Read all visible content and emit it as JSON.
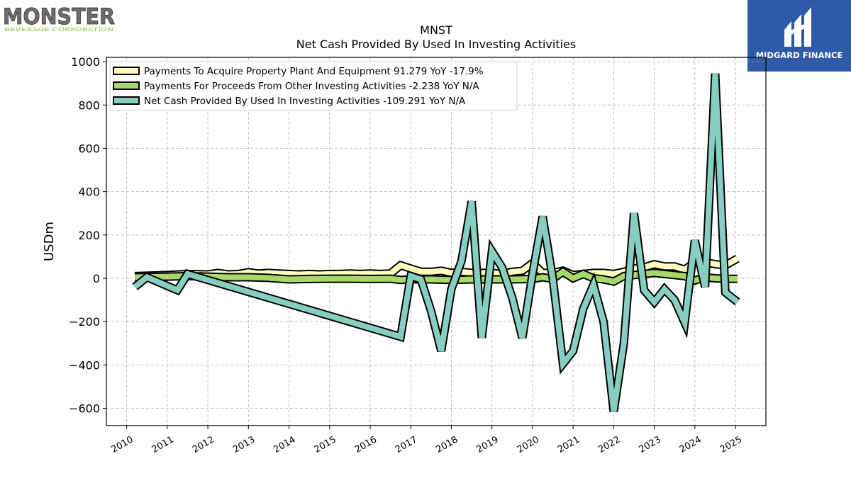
{
  "brand_left": {
    "name": "MONSTER",
    "sub": "BEVERAGE CORPORATION"
  },
  "brand_right": {
    "name": "MIDGARD FINANCE"
  },
  "colors": {
    "series1": "#ffffbf",
    "series2": "#a6d96a",
    "series3": "#86cfc0",
    "outline": "#000000",
    "brand_right_bg": "#2e5aa8"
  },
  "chart_data": {
    "type": "line",
    "title": "MNST",
    "subtitle": "Net Cash Provided By Used In Investing Activities",
    "ylabel": "USDm",
    "xlabel": "",
    "ylim": [
      -680,
      1020
    ],
    "xlim": [
      2009.5,
      2025.75
    ],
    "yticks": [
      -600,
      -400,
      -200,
      0,
      200,
      400,
      600,
      800,
      1000
    ],
    "ytick_labels": [
      "−600",
      "−400",
      "−200",
      "0",
      "200",
      "400",
      "600",
      "800",
      "1000"
    ],
    "xticks": [
      2010,
      2011,
      2012,
      2013,
      2014,
      2015,
      2016,
      2017,
      2018,
      2019,
      2020,
      2021,
      2022,
      2023,
      2024,
      2025
    ],
    "xtick_labels": [
      "2010",
      "2011",
      "2012",
      "2013",
      "2014",
      "2015",
      "2016",
      "2017",
      "2018",
      "2019",
      "2020",
      "2021",
      "2022",
      "2023",
      "2024",
      "2025"
    ],
    "grid": true,
    "legend_position": "top-left",
    "series": [
      {
        "name": "Payments To Acquire Property Plant And Equipment  91.279 YoY -17.9%",
        "x": [
          2010.2,
          2011.0,
          2011.5,
          2012.0,
          2012.25,
          2012.5,
          2012.75,
          2013.0,
          2013.25,
          2013.5,
          2013.75,
          2014.0,
          2014.25,
          2014.5,
          2014.75,
          2015.0,
          2015.25,
          2015.5,
          2015.75,
          2016.0,
          2016.25,
          2016.5,
          2016.75,
          2017.0,
          2017.25,
          2017.5,
          2017.75,
          2018.0,
          2018.25,
          2018.5,
          2018.75,
          2019.0,
          2019.25,
          2019.5,
          2019.75,
          2020.0,
          2020.25,
          2020.5,
          2020.75,
          2021.0,
          2021.25,
          2021.5,
          2021.75,
          2022.0,
          2022.25,
          2022.5,
          2022.75,
          2023.0,
          2023.25,
          2023.5,
          2023.75,
          2024.0,
          2024.25,
          2024.5,
          2024.75,
          2025.05
        ],
        "values": [
          10,
          15,
          20,
          18,
          25,
          18,
          20,
          28,
          22,
          25,
          22,
          20,
          18,
          20,
          18,
          20,
          20,
          22,
          20,
          22,
          20,
          22,
          60,
          45,
          30,
          30,
          35,
          25,
          30,
          25,
          25,
          25,
          20,
          30,
          35,
          70,
          25,
          25,
          35,
          15,
          20,
          25,
          25,
          20,
          30,
          45,
          50,
          65,
          55,
          55,
          40,
          75,
          75,
          65,
          60,
          91.279
        ]
      },
      {
        "name": "Payments For Proceeds From Other Investing Activities  -2.238 YoY N/A",
        "x": [
          2010.2,
          2011.0,
          2011.5,
          2012.0,
          2012.5,
          2013.0,
          2013.5,
          2014.0,
          2014.5,
          2015.0,
          2015.5,
          2016.0,
          2016.5,
          2016.75,
          2017.0,
          2017.5,
          2018.0,
          2018.5,
          2019.0,
          2019.5,
          2020.0,
          2020.25,
          2020.5,
          2020.75,
          2021.0,
          2021.25,
          2021.5,
          2021.75,
          2022.0,
          2022.25,
          2022.5,
          2022.75,
          2023.0,
          2023.25,
          2023.5,
          2023.75,
          2024.0,
          2024.25,
          2024.5,
          2024.75,
          2025.05
        ],
        "values": [
          5,
          8,
          10,
          8,
          5,
          5,
          2,
          -5,
          -3,
          -2,
          -2,
          -3,
          -2,
          -8,
          -5,
          -5,
          -8,
          -5,
          -5,
          -5,
          -3,
          5,
          -3,
          30,
          0,
          20,
          0,
          -5,
          -15,
          10,
          15,
          20,
          25,
          20,
          15,
          10,
          -10,
          5,
          0,
          -2,
          -2.238
        ]
      },
      {
        "name": "Net Cash Provided By Used In Investing Activities  -109.291 YoY N/A",
        "x": [
          2010.2,
          2010.5,
          2011.25,
          2011.5,
          2016.75,
          2017.0,
          2017.25,
          2017.5,
          2017.75,
          2018.0,
          2018.25,
          2018.5,
          2018.75,
          2019.0,
          2019.25,
          2019.5,
          2019.75,
          2020.0,
          2020.25,
          2020.5,
          2020.75,
          2021.0,
          2021.25,
          2021.5,
          2021.75,
          2022.0,
          2022.25,
          2022.5,
          2022.75,
          2023.0,
          2023.25,
          2023.5,
          2023.75,
          2024.0,
          2024.25,
          2024.5,
          2024.75,
          2025.05
        ],
        "values": [
          -40,
          5,
          -55,
          20,
          -270,
          10,
          -5,
          -150,
          -335,
          -50,
          80,
          355,
          -275,
          125,
          50,
          -90,
          -275,
          20,
          285,
          0,
          -395,
          -335,
          -140,
          -30,
          -200,
          -615,
          -300,
          300,
          -55,
          -110,
          -50,
          -100,
          -205,
          175,
          -40,
          945,
          -65,
          -109.291
        ]
      }
    ]
  }
}
